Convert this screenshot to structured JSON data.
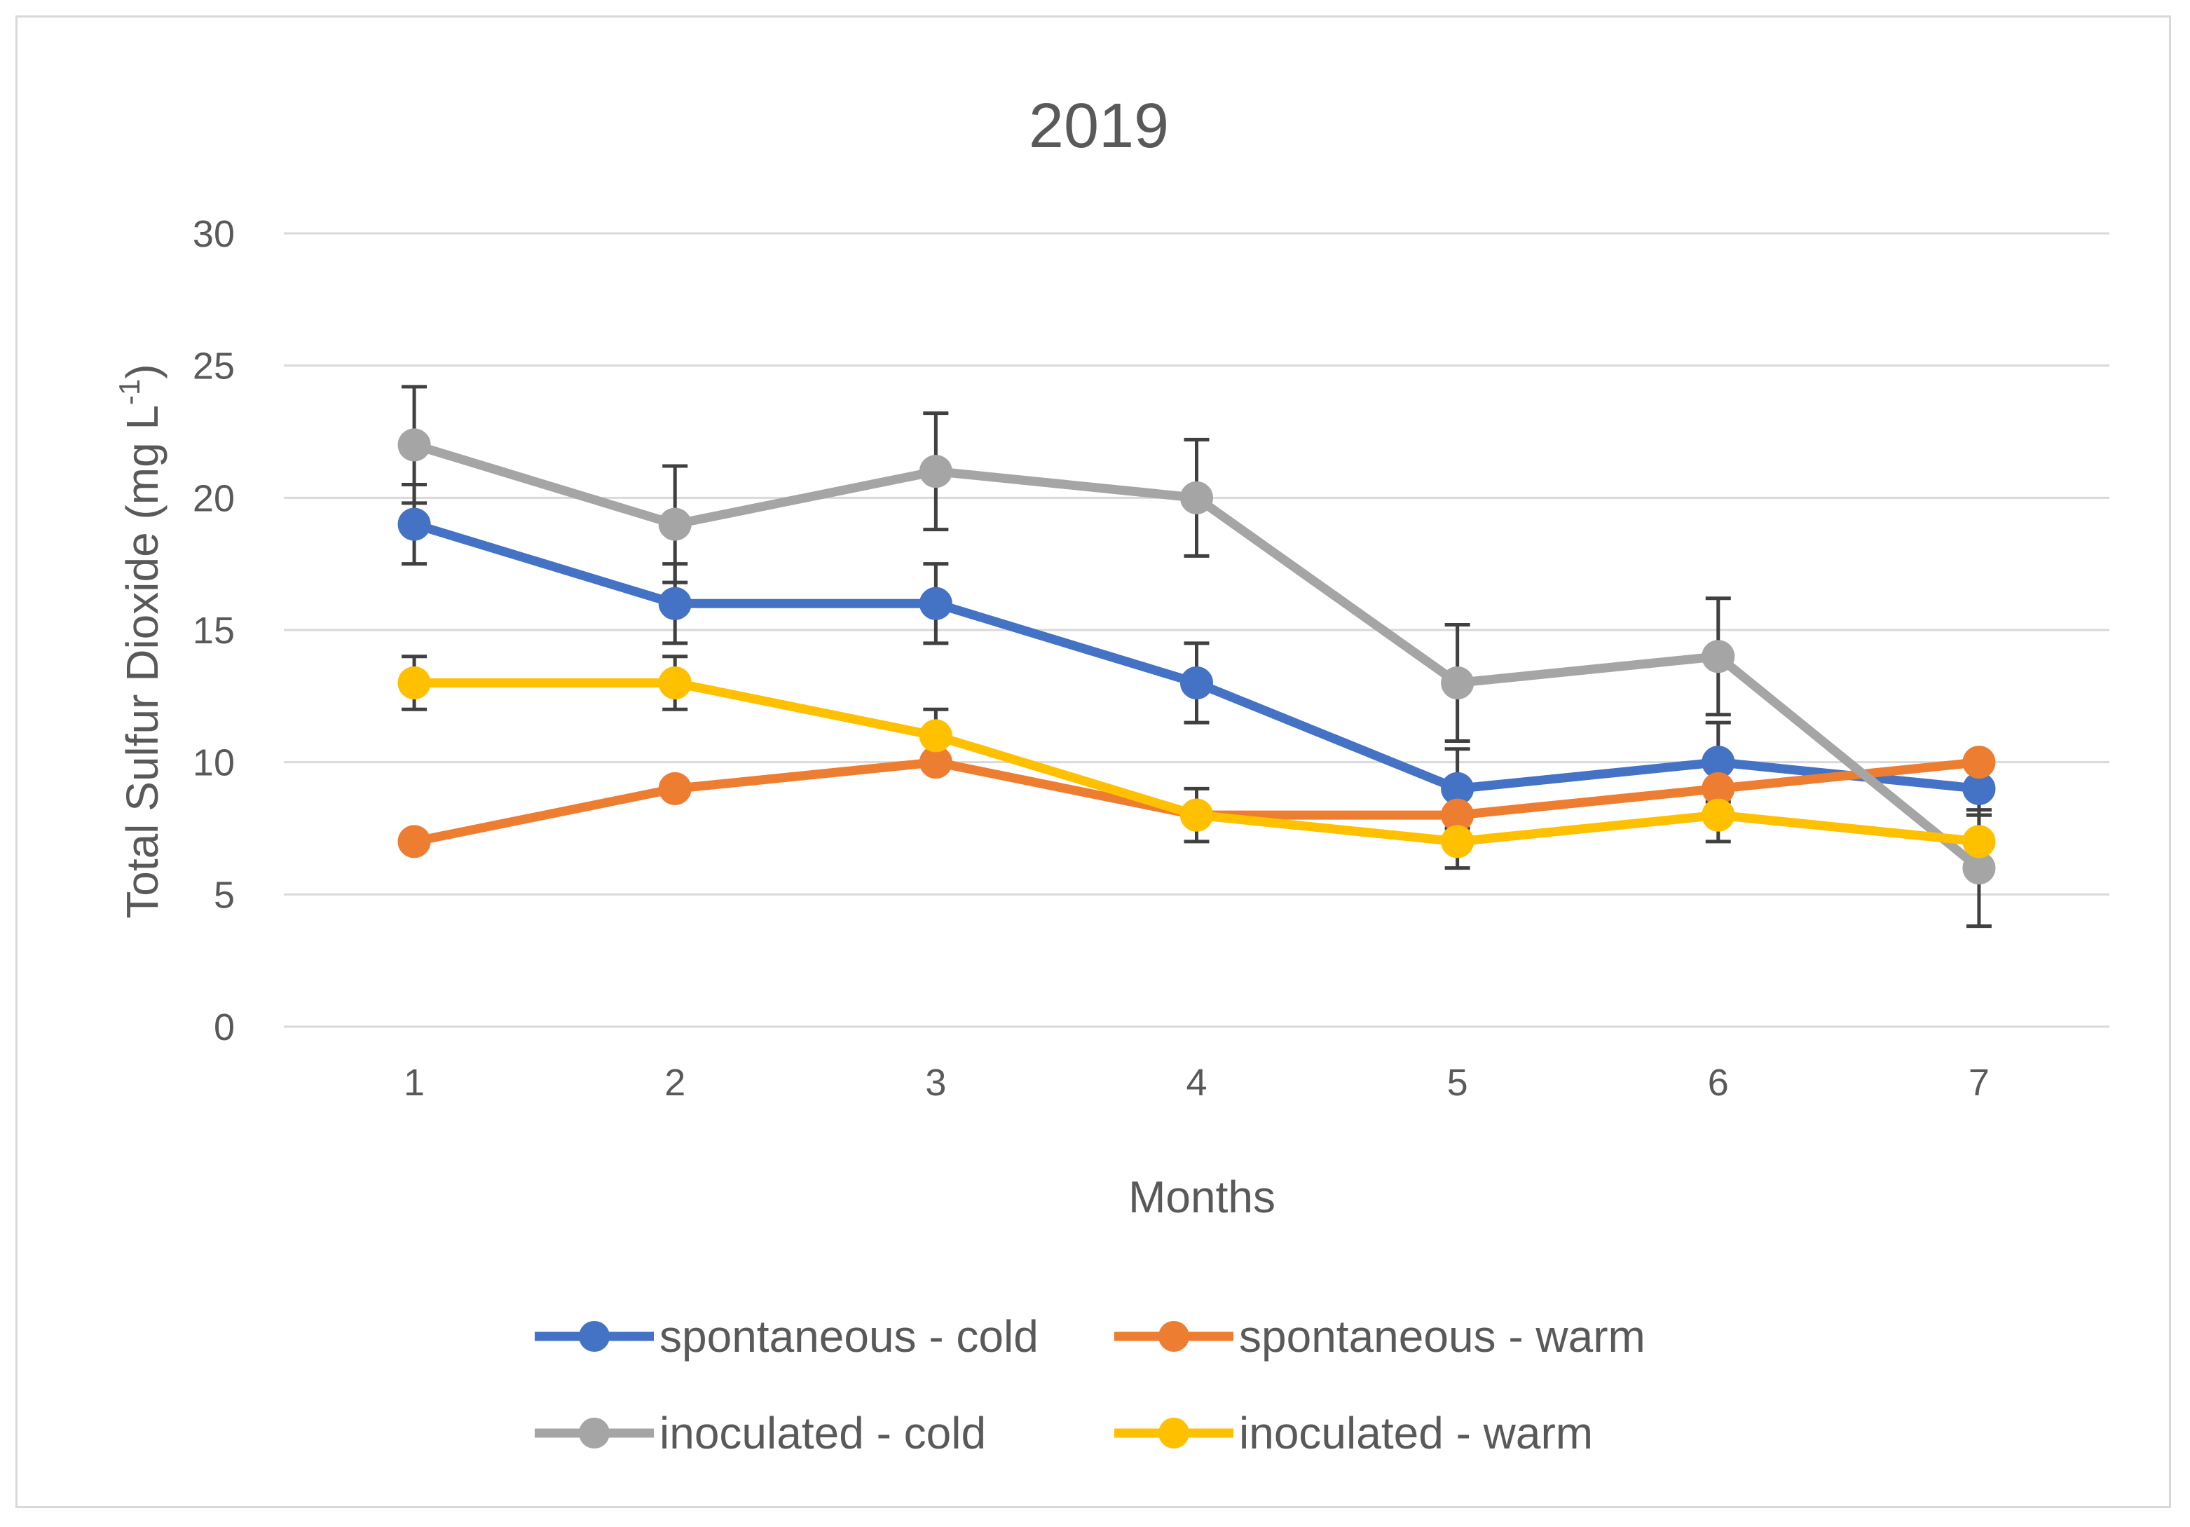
{
  "chart_data": {
    "type": "line",
    "title": "2019",
    "xlabel": "Months",
    "ylabel": {
      "text": "Total Sulfur Dioxide (mg L",
      "superscript": "-1",
      "suffix": ")"
    },
    "x": [
      1,
      2,
      3,
      4,
      5,
      6,
      7
    ],
    "ylim": [
      0,
      30
    ],
    "yticks": [
      0,
      5,
      10,
      15,
      20,
      25,
      30
    ],
    "grid": true,
    "legend_position": "bottom",
    "series": [
      {
        "name": "spontaneous - cold",
        "color": "#4472c4",
        "values": [
          19,
          16,
          16,
          13,
          9,
          10,
          9
        ],
        "errors": [
          1.5,
          1.5,
          1.5,
          1.5,
          1.5,
          1.5,
          1.0
        ]
      },
      {
        "name": "spontaneous - warm",
        "color": "#ed7d31",
        "values": [
          7,
          9,
          10,
          8,
          8,
          9,
          10
        ],
        "errors": [
          0,
          0,
          0,
          0,
          0,
          0,
          0
        ]
      },
      {
        "name": "inoculated - cold",
        "color": "#a5a5a5",
        "values": [
          22,
          19,
          21,
          20,
          13,
          14,
          6
        ],
        "errors": [
          2.2,
          2.2,
          2.2,
          2.2,
          2.2,
          2.2,
          2.2
        ]
      },
      {
        "name": "inoculated - warm",
        "color": "#ffc000",
        "values": [
          13,
          13,
          11,
          8,
          7,
          8,
          7
        ],
        "errors": [
          1.0,
          1.0,
          1.0,
          1.0,
          1.0,
          1.0,
          1.0
        ]
      }
    ]
  }
}
